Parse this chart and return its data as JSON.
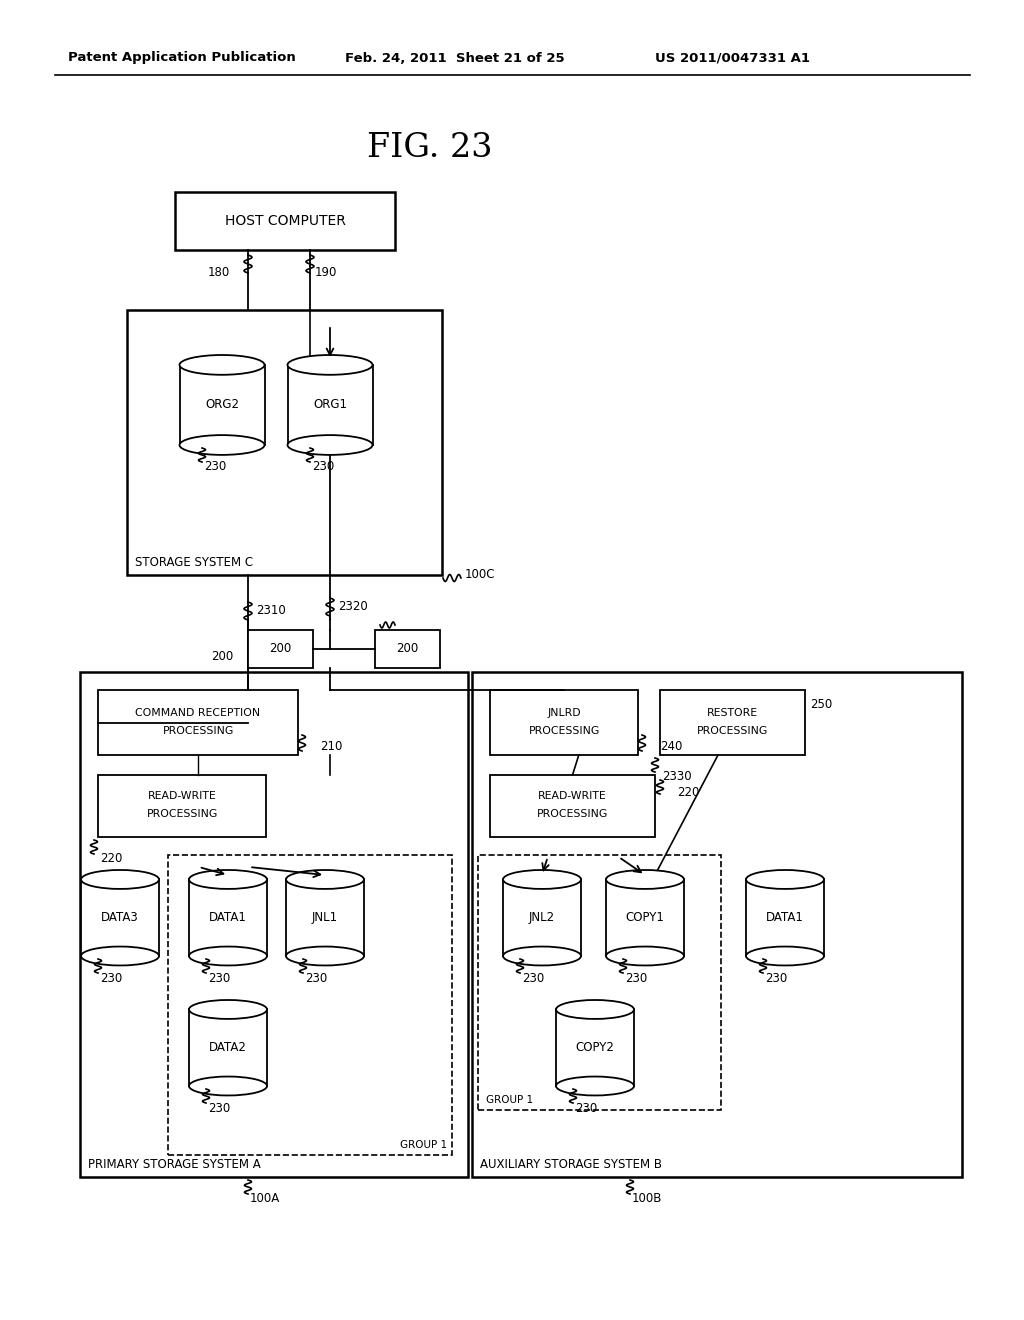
{
  "title": "FIG. 23",
  "header_left": "Patent Application Publication",
  "header_mid": "Feb. 24, 2011  Sheet 21 of 25",
  "header_right": "US 2011/0047331 A1",
  "bg_color": "#ffffff",
  "text_color": "#000000",
  "fig_w": 1024,
  "fig_h": 1320
}
